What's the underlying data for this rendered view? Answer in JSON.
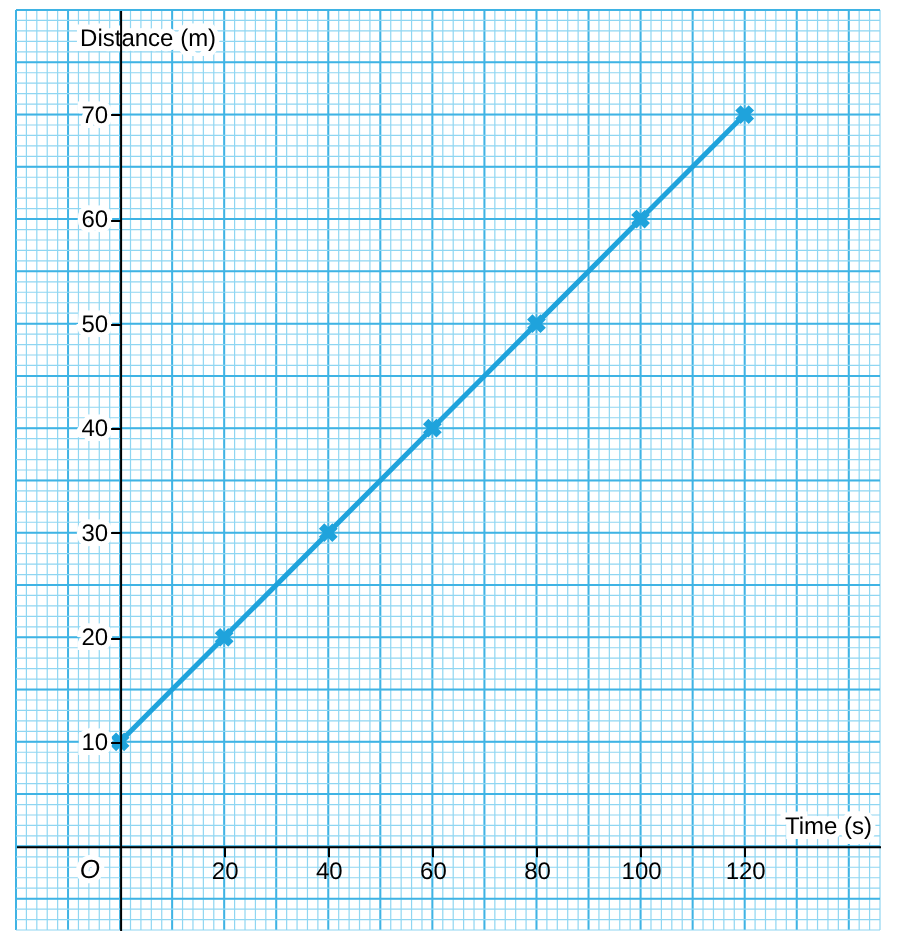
{
  "chart_data": {
    "type": "line",
    "xlabel": "Time (s)",
    "ylabel": "Distance (m)",
    "x": [
      0,
      20,
      40,
      60,
      80,
      100,
      120
    ],
    "series": [
      {
        "color": "#1fa3dc",
        "values": [
          10,
          20,
          30,
          40,
          50,
          60,
          70
        ]
      }
    ],
    "marker": "cross",
    "line_style": "solid",
    "xlim": [
      -20,
      146
    ],
    "ylim": [
      -8,
      80
    ],
    "xticks": [
      20,
      40,
      60,
      80,
      100,
      120
    ],
    "yticks": [
      10,
      20,
      30,
      40,
      50,
      60,
      70
    ],
    "grid": true,
    "annotations": [
      "O"
    ]
  }
}
